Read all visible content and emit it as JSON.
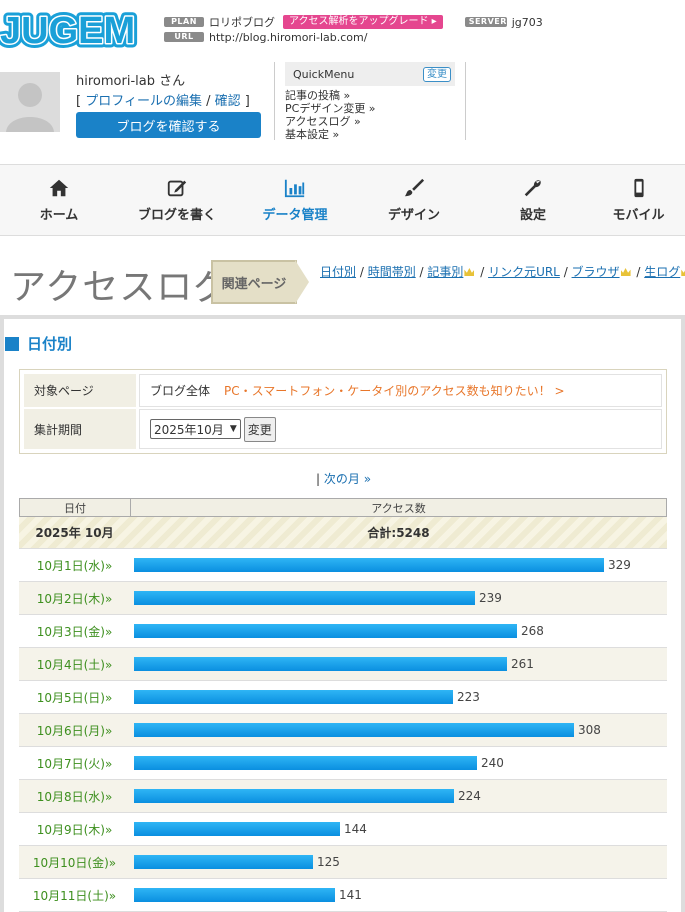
{
  "header": {
    "logo_text": "JUGEM",
    "plan_tag": "PLAN",
    "plan_name": "ロリポブログ",
    "upgrade_label": "アクセス解析をアップグレード ▸",
    "server_tag": "SERVER",
    "server_name": "jg703",
    "url_tag": "URL",
    "url": "http://blog.hiromori-lab.com/"
  },
  "profile": {
    "username": "hiromori-lab さん",
    "bracket_open": "[",
    "edit_profile": "プロフィールの編集",
    "separator": "/",
    "confirm": "確認",
    "bracket_close": "]",
    "confirm_blog_button": "ブログを確認する"
  },
  "quickmenu": {
    "title": "QuickMenu",
    "change_button": "変更",
    "items": [
      "記事の投稿 »",
      "PCデザイン変更 »",
      "アクセスログ »",
      "基本設定 »"
    ]
  },
  "nav": {
    "items": [
      {
        "label": "ホーム",
        "icon": "home-icon"
      },
      {
        "label": "ブログを書く",
        "icon": "edit-icon"
      },
      {
        "label": "データ管理",
        "icon": "chart-icon"
      },
      {
        "label": "デザイン",
        "icon": "brush-icon"
      },
      {
        "label": "設定",
        "icon": "wrench-icon"
      },
      {
        "label": "モバイル",
        "icon": "mobile-icon"
      }
    ],
    "active_index": 2
  },
  "page": {
    "title": "アクセスログ",
    "related_label": "関連ページ",
    "sublinks": [
      "日付別",
      "時間帯別",
      "記事別",
      "リンク元URL",
      "ブラウザ",
      "生ログ"
    ],
    "section_title": "日付別"
  },
  "filter": {
    "target_label": "対象ページ",
    "target_value": "ブログ全体",
    "target_link": "PC・スマートフォン・ケータイ別のアクセス数も知りたい！ >",
    "period_label": "集計期間",
    "period_value": "2025年10月",
    "change_button": "変更"
  },
  "pager": {
    "prefix": "|",
    "next_month": "次の月 »"
  },
  "table": {
    "col_date": "日付",
    "col_count": "アクセス数",
    "month_label": "2025年 10月",
    "total_label": "合計:5248",
    "rows": [
      {
        "date": "10月1日(水)»",
        "count": 329
      },
      {
        "date": "10月2日(木)»",
        "count": 239
      },
      {
        "date": "10月3日(金)»",
        "count": 268
      },
      {
        "date": "10月4日(土)»",
        "count": 261
      },
      {
        "date": "10月5日(日)»",
        "count": 223
      },
      {
        "date": "10月6日(月)»",
        "count": 308
      },
      {
        "date": "10月7日(火)»",
        "count": 240
      },
      {
        "date": "10月8日(水)»",
        "count": 224
      },
      {
        "date": "10月9日(木)»",
        "count": 144
      },
      {
        "date": "10月10日(金)»",
        "count": 125
      },
      {
        "date": "10月11日(土)»",
        "count": 141
      }
    ]
  },
  "colors": {
    "brand_blue": "#1a82c8",
    "upgrade_pink": "#e5468f",
    "date_green": "#3d8f1e",
    "bar_blue": "#0a8fe0"
  }
}
